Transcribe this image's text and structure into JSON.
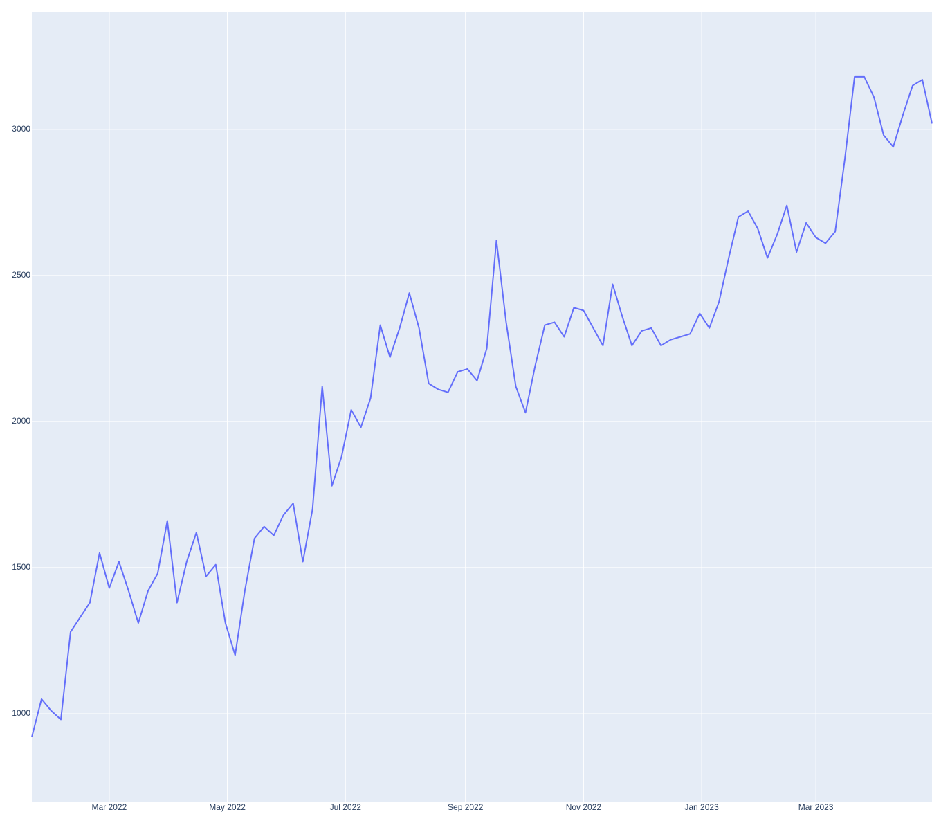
{
  "chart_data": {
    "type": "line",
    "x": [
      "2022-01-20",
      "2022-01-25",
      "2022-01-30",
      "2022-02-04",
      "2022-02-09",
      "2022-02-14",
      "2022-02-19",
      "2022-02-24",
      "2022-03-01",
      "2022-03-06",
      "2022-03-11",
      "2022-03-16",
      "2022-03-21",
      "2022-03-26",
      "2022-03-31",
      "2022-04-05",
      "2022-04-10",
      "2022-04-15",
      "2022-04-20",
      "2022-04-25",
      "2022-04-30",
      "2022-05-05",
      "2022-05-10",
      "2022-05-15",
      "2022-05-20",
      "2022-05-25",
      "2022-05-30",
      "2022-06-04",
      "2022-06-09",
      "2022-06-14",
      "2022-06-19",
      "2022-06-24",
      "2022-06-29",
      "2022-07-04",
      "2022-07-09",
      "2022-07-14",
      "2022-07-19",
      "2022-07-24",
      "2022-07-29",
      "2022-08-03",
      "2022-08-08",
      "2022-08-13",
      "2022-08-18",
      "2022-08-23",
      "2022-08-28",
      "2022-09-02",
      "2022-09-07",
      "2022-09-12",
      "2022-09-17",
      "2022-09-22",
      "2022-09-27",
      "2022-10-02",
      "2022-10-07",
      "2022-10-12",
      "2022-10-17",
      "2022-10-22",
      "2022-10-27",
      "2022-11-01",
      "2022-11-06",
      "2022-11-11",
      "2022-11-16",
      "2022-11-21",
      "2022-11-26",
      "2022-12-01",
      "2022-12-06",
      "2022-12-11",
      "2022-12-16",
      "2022-12-21",
      "2022-12-26",
      "2022-12-31",
      "2023-01-05",
      "2023-01-10",
      "2023-01-15",
      "2023-01-20",
      "2023-01-25",
      "2023-01-30",
      "2023-02-04",
      "2023-02-09",
      "2023-02-14",
      "2023-02-19",
      "2023-02-24",
      "2023-03-01",
      "2023-03-06",
      "2023-03-11",
      "2023-03-16",
      "2023-03-21",
      "2023-03-26",
      "2023-03-31",
      "2023-04-05",
      "2023-04-10",
      "2023-04-15",
      "2023-04-20",
      "2023-04-25",
      "2023-04-30"
    ],
    "values": [
      920,
      1050,
      1010,
      980,
      1280,
      1330,
      1380,
      1550,
      1430,
      1520,
      1420,
      1310,
      1420,
      1480,
      1660,
      1380,
      1520,
      1620,
      1470,
      1510,
      1310,
      1200,
      1420,
      1600,
      1640,
      1610,
      1680,
      1720,
      1520,
      1700,
      2120,
      1780,
      1880,
      2040,
      1980,
      2080,
      2330,
      2220,
      2320,
      2440,
      2320,
      2130,
      2110,
      2100,
      2170,
      2180,
      2140,
      2250,
      2620,
      2340,
      2120,
      2030,
      2190,
      2330,
      2340,
      2290,
      2390,
      2380,
      2320,
      2260,
      2470,
      2360,
      2260,
      2310,
      2320,
      2260,
      2280,
      2290,
      2300,
      2370,
      2320,
      2410,
      2560,
      2700,
      2720,
      2660,
      2560,
      2640,
      2740,
      2580,
      2680,
      2630,
      2610,
      2650,
      2900,
      3180,
      3180,
      3110,
      2980,
      2940,
      3050,
      3150,
      3170,
      3020
    ],
    "color": "#636efa",
    "xlim": [
      "2022-01-20",
      "2023-04-30"
    ],
    "xticks": [
      {
        "value": "2022-03-01",
        "label": "Mar 2022"
      },
      {
        "value": "2022-05-01",
        "label": "May 2022"
      },
      {
        "value": "2022-07-01",
        "label": "Jul 2022"
      },
      {
        "value": "2022-09-01",
        "label": "Sep 2022"
      },
      {
        "value": "2022-11-01",
        "label": "Nov 2022"
      },
      {
        "value": "2023-01-01",
        "label": "Jan 2023"
      },
      {
        "value": "2023-03-01",
        "label": "Mar 2023"
      }
    ],
    "ylim": [
      699,
      3400
    ],
    "yticks": [
      1000,
      1500,
      2000,
      2500,
      3000
    ],
    "grid": true
  }
}
